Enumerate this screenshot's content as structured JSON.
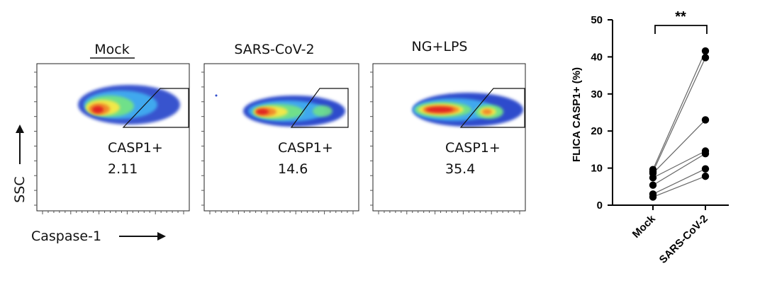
{
  "flow_panels": [
    {
      "title": "Mock",
      "gate_label": "CASP1+",
      "gate_value": "2.11"
    },
    {
      "title": "SARS-CoV-2",
      "gate_label": "CASP1+",
      "gate_value": "14.6"
    },
    {
      "title": "NG+LPS",
      "gate_label": "CASP1+",
      "gate_value": "35.4"
    }
  ],
  "flow_axes": {
    "y_label": "SSC",
    "x_label": "Caspase-1"
  },
  "chart_data": {
    "type": "scatter",
    "ylabel": "FLICA CASP1+  (%)",
    "xlabel": "",
    "categories": [
      "Mock",
      "SARS-CoV-2"
    ],
    "ylim": [
      0,
      50
    ],
    "yticks": [
      0,
      10,
      20,
      30,
      40,
      50
    ],
    "significance": "**",
    "pairs": [
      {
        "mock": 2.2,
        "sars": 7.8
      },
      {
        "mock": 3.0,
        "sars": 9.8
      },
      {
        "mock": 5.4,
        "sars": 13.9
      },
      {
        "mock": 7.4,
        "sars": 14.6
      },
      {
        "mock": 8.6,
        "sars": 23.0
      },
      {
        "mock": 9.0,
        "sars": 39.8
      },
      {
        "mock": 9.6,
        "sars": 41.6
      }
    ]
  }
}
